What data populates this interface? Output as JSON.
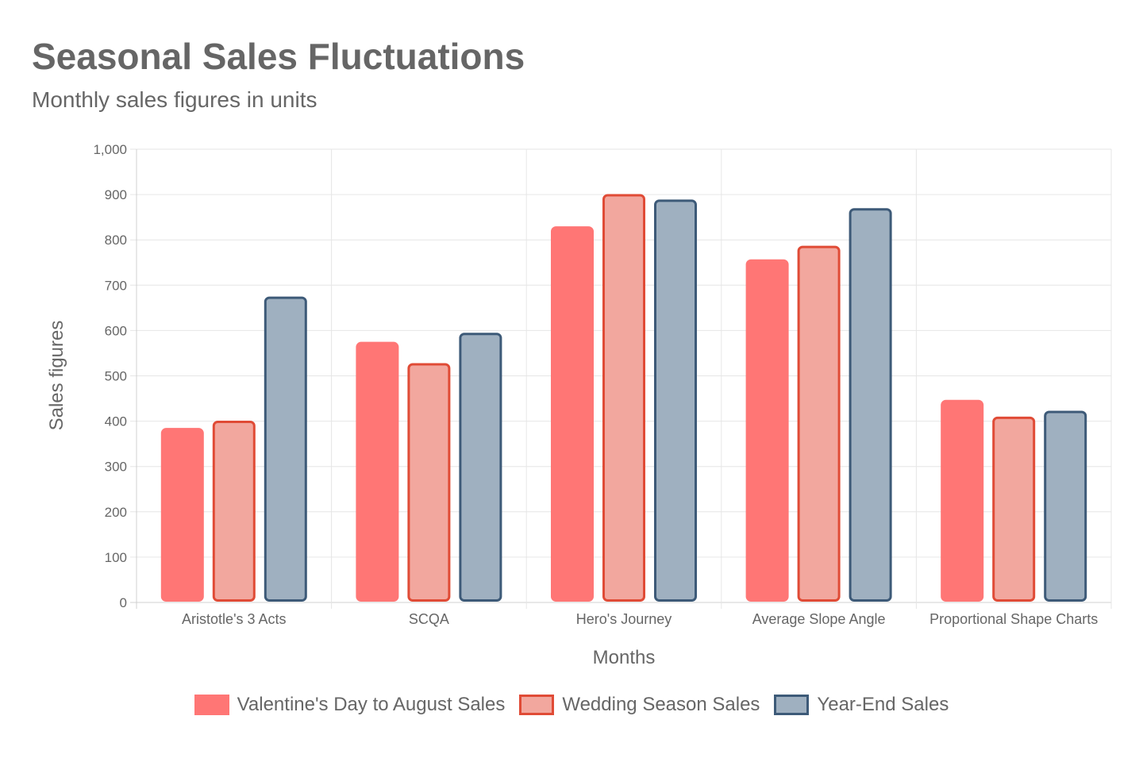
{
  "chart_data": {
    "type": "bar",
    "title": "Seasonal Sales Fluctuations",
    "subtitle": "Monthly sales figures in units",
    "xlabel": "Months",
    "ylabel": "Sales figures",
    "categories": [
      "Aristotle's 3 Acts",
      "SCQA",
      "Hero's Journey",
      "Average Slope Angle",
      "Proportional Shape Charts"
    ],
    "ylim": [
      0,
      1000
    ],
    "yticks": [
      0,
      100,
      200,
      300,
      400,
      500,
      600,
      700,
      800,
      900,
      1000
    ],
    "ytick_labels": [
      "0",
      "100",
      "200",
      "300",
      "400",
      "500",
      "600",
      "700",
      "800",
      "900",
      "1,000"
    ],
    "grid": true,
    "legend_position": "bottom",
    "series": [
      {
        "name": "Valentine's Day to August Sales",
        "values": [
          385,
          575,
          830,
          757,
          447
        ],
        "fill": "#ff7675",
        "stroke": "#ff7675"
      },
      {
        "name": "Wedding Season Sales",
        "values": [
          401,
          528,
          901,
          787,
          410
        ],
        "fill": "#f2a79e",
        "stroke": "#e04b36"
      },
      {
        "name": "Year-End Sales",
        "values": [
          675,
          595,
          889,
          870,
          423
        ],
        "fill": "#9fb0c0",
        "stroke": "#3d5a78"
      }
    ]
  }
}
